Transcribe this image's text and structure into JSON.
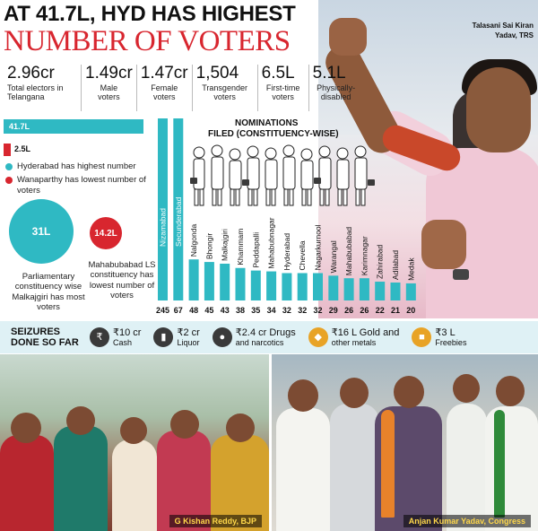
{
  "headline": {
    "line1": "AT 41.7L, HYD HAS HIGHEST",
    "line2": "NUMBER OF VOTERS"
  },
  "hero": {
    "caption_name": "Talasani Sai Kiran",
    "caption_party": "Yadav, TRS"
  },
  "stats": [
    {
      "value": "2.96cr",
      "label": "Total electors in Telangana"
    },
    {
      "value": "1.49cr",
      "label": "Male voters"
    },
    {
      "value": "1.47cr",
      "label": "Female voters"
    },
    {
      "value": "1,504",
      "label": "Transgender voters"
    },
    {
      "value": "6.5L",
      "label": "First-time voters"
    },
    {
      "value": "5.1L",
      "label": "Physically-disabled"
    }
  ],
  "scale_bars": {
    "big_label": "41.7L",
    "small_label": "2.5L"
  },
  "legend": {
    "hyd": "Hyderabad has highest number",
    "wanaparthy": "Wanaparthy has lowest number of voters",
    "colors": {
      "accent": "#2fb9c3",
      "red": "#d8262f"
    }
  },
  "circles": {
    "big_value": "31L",
    "big_text": "Parliamentary constituency wise Malkajgiri has most voters",
    "small_value": "14.2L",
    "small_text": "Mahabubabad LS constituency has lowest number of voters"
  },
  "nominations": {
    "title_line1": "NOMINATIONS",
    "title_line2": "FILED (CONSTITUENCY-WISE)"
  },
  "chart_data": {
    "type": "bar",
    "title": "NOMINATIONS FILED (CONSTITUENCY-WISE)",
    "categories": [
      "Nizamabad",
      "Secunderabad",
      "Nalgonda",
      "Bhongir",
      "Malkajgiri",
      "Khammam",
      "Peddapalli",
      "Mahabubnagar",
      "Hyderabad",
      "Chevella",
      "Nagarkurnool",
      "Warangal",
      "Mahabubabad",
      "Karimnagar",
      "Zahirabad",
      "Adilabad",
      "Medak"
    ],
    "values": [
      245,
      67,
      48,
      45,
      43,
      38,
      35,
      34,
      32,
      32,
      32,
      29,
      26,
      26,
      22,
      21,
      20
    ],
    "value_labels": [
      "245",
      "67",
      "48",
      "45",
      "43",
      "38",
      "35",
      "34",
      "32",
      "32",
      "32",
      "29",
      "26",
      "26",
      "22",
      "21",
      "20"
    ],
    "ylim": [
      0,
      245
    ],
    "color": "#2fb9c3"
  },
  "seizures": {
    "title_line1": "SEIZURES",
    "title_line2": "DONE SO FAR",
    "items": [
      {
        "icon": "cash-icon",
        "amount": "₹10 cr",
        "label": "Cash",
        "color": "#3a3a3a"
      },
      {
        "icon": "liquor-icon",
        "amount": "₹2 cr",
        "label": "Liquor",
        "color": "#3a3a3a"
      },
      {
        "icon": "drugs-icon",
        "amount": "₹2.4 cr Drugs",
        "label": "and narcotics",
        "color": "#3a3a3a"
      },
      {
        "icon": "gold-icon",
        "amount": "₹16 L Gold and",
        "label": "other metals",
        "color": "#e8a326"
      },
      {
        "icon": "gift-icon",
        "amount": "₹3 L",
        "label": "Freebies",
        "color": "#e8a326"
      }
    ]
  },
  "photos": {
    "left_caption": "G Kishan Reddy, BJP",
    "right_caption": "Anjan Kumar Yadav, Congress"
  }
}
